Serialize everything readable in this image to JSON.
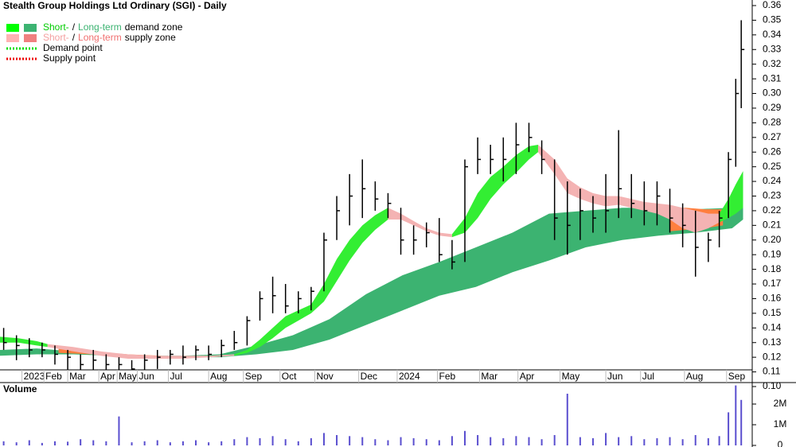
{
  "chart_data": {
    "type": "ohlc",
    "title": "Stealth Group Holdings Ltd Ordinary (SGI) - Daily",
    "color": "#000000",
    "x": [
      2,
      9,
      16,
      23,
      30,
      37,
      44,
      51,
      58,
      65,
      72,
      79,
      86,
      93,
      100,
      107,
      114,
      121,
      128,
      135,
      142,
      149,
      156,
      163,
      170,
      177,
      184,
      191,
      198,
      205,
      212,
      219,
      226,
      233,
      240,
      247,
      254,
      261,
      268,
      275,
      282,
      289,
      296,
      303,
      310,
      317,
      324,
      331,
      338,
      345,
      352,
      359,
      366,
      373,
      380,
      387,
      393,
      398,
      402,
      405
    ],
    "high": [
      0.14,
      0.135,
      0.133,
      0.13,
      0.128,
      0.125,
      0.122,
      0.125,
      0.122,
      0.12,
      0.118,
      0.122,
      0.125,
      0.125,
      0.128,
      0.128,
      0.128,
      0.132,
      0.138,
      0.148,
      0.165,
      0.175,
      0.17,
      0.165,
      0.168,
      0.205,
      0.23,
      0.245,
      0.255,
      0.24,
      0.232,
      0.222,
      0.21,
      0.212,
      0.215,
      0.2,
      0.255,
      0.27,
      0.265,
      0.27,
      0.28,
      0.28,
      0.268,
      0.255,
      0.24,
      0.235,
      0.23,
      0.245,
      0.275,
      0.245,
      0.24,
      0.24,
      0.235,
      0.225,
      0.22,
      0.205,
      0.22,
      0.26,
      0.31,
      0.35
    ],
    "low": [
      0.125,
      0.118,
      0.12,
      0.12,
      0.115,
      0.11,
      0.102,
      0.105,
      0.1,
      0.108,
      0.105,
      0.11,
      0.112,
      0.115,
      0.115,
      0.118,
      0.118,
      0.12,
      0.125,
      0.128,
      0.145,
      0.15,
      0.15,
      0.15,
      0.152,
      0.165,
      0.2,
      0.21,
      0.215,
      0.22,
      0.215,
      0.19,
      0.19,
      0.195,
      0.185,
      0.18,
      0.185,
      0.245,
      0.245,
      0.24,
      0.245,
      0.26,
      0.245,
      0.2,
      0.19,
      0.2,
      0.205,
      0.205,
      0.215,
      0.215,
      0.21,
      0.21,
      0.205,
      0.195,
      0.175,
      0.185,
      0.195,
      0.215,
      0.25,
      0.29
    ],
    "close": [
      0.13,
      0.128,
      0.125,
      0.125,
      0.122,
      0.12,
      0.115,
      0.118,
      0.115,
      0.115,
      0.112,
      0.118,
      0.12,
      0.122,
      0.12,
      0.125,
      0.122,
      0.128,
      0.13,
      0.145,
      0.16,
      0.162,
      0.155,
      0.16,
      0.165,
      0.2,
      0.22,
      0.23,
      0.235,
      0.228,
      0.225,
      0.2,
      0.2,
      0.205,
      0.19,
      0.185,
      0.25,
      0.255,
      0.255,
      0.255,
      0.265,
      0.27,
      0.255,
      0.215,
      0.21,
      0.22,
      0.215,
      0.22,
      0.235,
      0.225,
      0.22,
      0.23,
      0.215,
      0.21,
      0.195,
      0.2,
      0.215,
      0.255,
      0.3,
      0.33
    ],
    "xlim": [
      0,
      411
    ],
    "xticks": [
      {
        "value": 12,
        "label": "2023"
      },
      {
        "value": 24,
        "label": "Feb"
      },
      {
        "value": 37,
        "label": "Mar"
      },
      {
        "value": 54,
        "label": "Apr"
      },
      {
        "value": 64,
        "label": "May"
      },
      {
        "value": 75,
        "label": "Jun"
      },
      {
        "value": 92,
        "label": "Jul"
      },
      {
        "value": 114,
        "label": "Aug"
      },
      {
        "value": 133,
        "label": "Sep"
      },
      {
        "value": 153,
        "label": "Oct"
      },
      {
        "value": 172,
        "label": "Nov"
      },
      {
        "value": 196,
        "label": "Dec"
      },
      {
        "value": 217,
        "label": "2024"
      },
      {
        "value": 239,
        "label": "Feb"
      },
      {
        "value": 262,
        "label": "Mar"
      },
      {
        "value": 283,
        "label": "Apr"
      },
      {
        "value": 306,
        "label": "May"
      },
      {
        "value": 331,
        "label": "Jun"
      },
      {
        "value": 350,
        "label": "Jul"
      },
      {
        "value": 374,
        "label": "Aug"
      },
      {
        "value": 397,
        "label": "Sep"
      }
    ],
    "ylim": [
      0.1,
      0.36
    ],
    "yticks": [
      {
        "value": 0.1,
        "label": "0.10"
      },
      0.11,
      0.12,
      0.13,
      0.14,
      0.15,
      0.16,
      0.17,
      0.18,
      0.19,
      {
        "value": 0.2,
        "label": "0.20"
      },
      0.21,
      0.22,
      0.23,
      0.24,
      0.25,
      0.26,
      0.27,
      0.28,
      0.29,
      {
        "value": 0.3,
        "label": "0.30"
      },
      0.31,
      0.32,
      0.33,
      0.34,
      0.35,
      0.36
    ],
    "zones": [
      {
        "color": "#3cb371",
        "x": [
          0,
          20,
          40,
          60,
          80,
          100,
          120,
          140,
          160,
          180,
          200,
          220,
          240,
          260,
          280,
          300,
          320,
          340,
          360,
          380,
          400,
          406
        ],
        "upper": [
          0.125,
          0.126,
          0.124,
          0.122,
          0.121,
          0.121,
          0.122,
          0.128,
          0.135,
          0.146,
          0.163,
          0.176,
          0.185,
          0.195,
          0.205,
          0.218,
          0.22,
          0.222,
          0.222,
          0.221,
          0.222,
          0.226
        ],
        "lower": [
          0.121,
          0.122,
          0.122,
          0.121,
          0.12,
          0.12,
          0.12,
          0.122,
          0.125,
          0.132,
          0.142,
          0.152,
          0.162,
          0.168,
          0.178,
          0.186,
          0.195,
          0.2,
          0.203,
          0.205,
          0.208,
          0.214
        ]
      },
      {
        "color": "#ff7f3f",
        "x": [
          32,
          50,
          70,
          88
        ],
        "upper": [
          0.126,
          0.124,
          0.122,
          0.121
        ],
        "lower": [
          0.123,
          0.122,
          0.121,
          0.12
        ]
      },
      {
        "color": "#ff7f3f",
        "x": [
          366,
          375,
          385,
          395
        ],
        "upper": [
          0.222,
          0.222,
          0.221,
          0.221
        ],
        "lower": [
          0.206,
          0.207,
          0.208,
          0.21
        ]
      },
      {
        "color": "#33ee33",
        "x": [
          0,
          10,
          20,
          26
        ],
        "upper": [
          0.134,
          0.133,
          0.131,
          0.129
        ],
        "lower": [
          0.13,
          0.13,
          0.128,
          0.127
        ]
      },
      {
        "color": "#f4b3b3",
        "x": [
          26,
          40,
          55,
          70,
          85,
          100,
          115,
          128
        ],
        "upper": [
          0.129,
          0.127,
          0.124,
          0.122,
          0.121,
          0.121,
          0.121,
          0.122
        ],
        "lower": [
          0.127,
          0.124,
          0.121,
          0.119,
          0.119,
          0.119,
          0.12,
          0.121
        ]
      },
      {
        "color": "#33ee33",
        "x": [
          128,
          135,
          142,
          149,
          156,
          163,
          170,
          177,
          184,
          191,
          198,
          205,
          212
        ],
        "upper": [
          0.122,
          0.125,
          0.132,
          0.14,
          0.148,
          0.152,
          0.156,
          0.17,
          0.187,
          0.2,
          0.21,
          0.217,
          0.222
        ],
        "lower": [
          0.121,
          0.123,
          0.127,
          0.133,
          0.14,
          0.145,
          0.15,
          0.158,
          0.172,
          0.186,
          0.198,
          0.207,
          0.214
        ]
      },
      {
        "color": "#f4b3b3",
        "x": [
          212,
          219,
          226,
          233,
          240,
          247
        ],
        "upper": [
          0.222,
          0.218,
          0.213,
          0.208,
          0.205,
          0.204
        ],
        "lower": [
          0.214,
          0.214,
          0.21,
          0.206,
          0.203,
          0.202
        ]
      },
      {
        "color": "#33ee33",
        "x": [
          247,
          254,
          261,
          268,
          275,
          282,
          289,
          294
        ],
        "upper": [
          0.204,
          0.215,
          0.232,
          0.243,
          0.25,
          0.258,
          0.264,
          0.265
        ],
        "lower": [
          0.202,
          0.205,
          0.215,
          0.228,
          0.238,
          0.246,
          0.255,
          0.26
        ]
      },
      {
        "color": "#f4b3b3",
        "x": [
          294,
          303,
          310,
          317,
          324,
          331,
          338,
          345,
          352,
          359,
          366,
          373,
          380,
          387,
          393
        ],
        "upper": [
          0.265,
          0.255,
          0.242,
          0.236,
          0.232,
          0.23,
          0.23,
          0.228,
          0.226,
          0.225,
          0.224,
          0.222,
          0.22,
          0.218,
          0.218
        ],
        "lower": [
          0.26,
          0.245,
          0.232,
          0.228,
          0.225,
          0.223,
          0.224,
          0.222,
          0.22,
          0.218,
          0.214,
          0.208,
          0.205,
          0.208,
          0.212
        ]
      },
      {
        "color": "#33ee33",
        "x": [
          393,
          398,
          402,
          406
        ],
        "upper": [
          0.218,
          0.228,
          0.238,
          0.247
        ],
        "lower": [
          0.212,
          0.215,
          0.218,
          0.222
        ]
      }
    ],
    "legend": [
      {
        "parts": [
          "Short-",
          "/",
          "Long-term",
          "demand zone"
        ],
        "colors": [
          "#00cc00",
          "#000000",
          "#3cb371",
          "#000000"
        ],
        "swatches": [
          "#00ff00",
          "#3cb371"
        ]
      },
      {
        "parts": [
          "Short-",
          "/",
          "Long-term",
          "supply zone"
        ],
        "colors": [
          "#f4a0a0",
          "#000000",
          "#f07070",
          "#000000"
        ],
        "swatches": [
          "#ffb3b3",
          "#f08080"
        ]
      },
      {
        "parts": [
          "Demand point"
        ],
        "colors": [
          "#000000"
        ],
        "dots": "#00dd00"
      },
      {
        "parts": [
          "Supply point"
        ],
        "colors": [
          "#000000"
        ],
        "dots": "#ee0000"
      }
    ],
    "volume": {
      "label": "Volume",
      "color": "#5a4fcf",
      "values": [
        200000,
        150000,
        250000,
        120000,
        200000,
        180000,
        300000,
        250000,
        200000,
        1400000,
        150000,
        200000,
        250000,
        150000,
        200000,
        250000,
        150000,
        200000,
        300000,
        400000,
        350000,
        450000,
        300000,
        200000,
        350000,
        600000,
        500000,
        450000,
        400000,
        300000,
        250000,
        400000,
        350000,
        300000,
        250000,
        450000,
        700000,
        500000,
        400000,
        350000,
        450000,
        400000,
        300000,
        500000,
        2500000,
        400000,
        350000,
        600000,
        400000,
        450000,
        300000,
        350000,
        400000,
        300000,
        500000,
        350000,
        450000,
        1600000,
        2900000,
        2200000
      ],
      "ylim": [
        0,
        3000000
      ],
      "yticks": [
        0,
        {
          "value": 1000000,
          "label": "1M"
        },
        {
          "value": 2000000,
          "label": "2M"
        }
      ]
    }
  }
}
